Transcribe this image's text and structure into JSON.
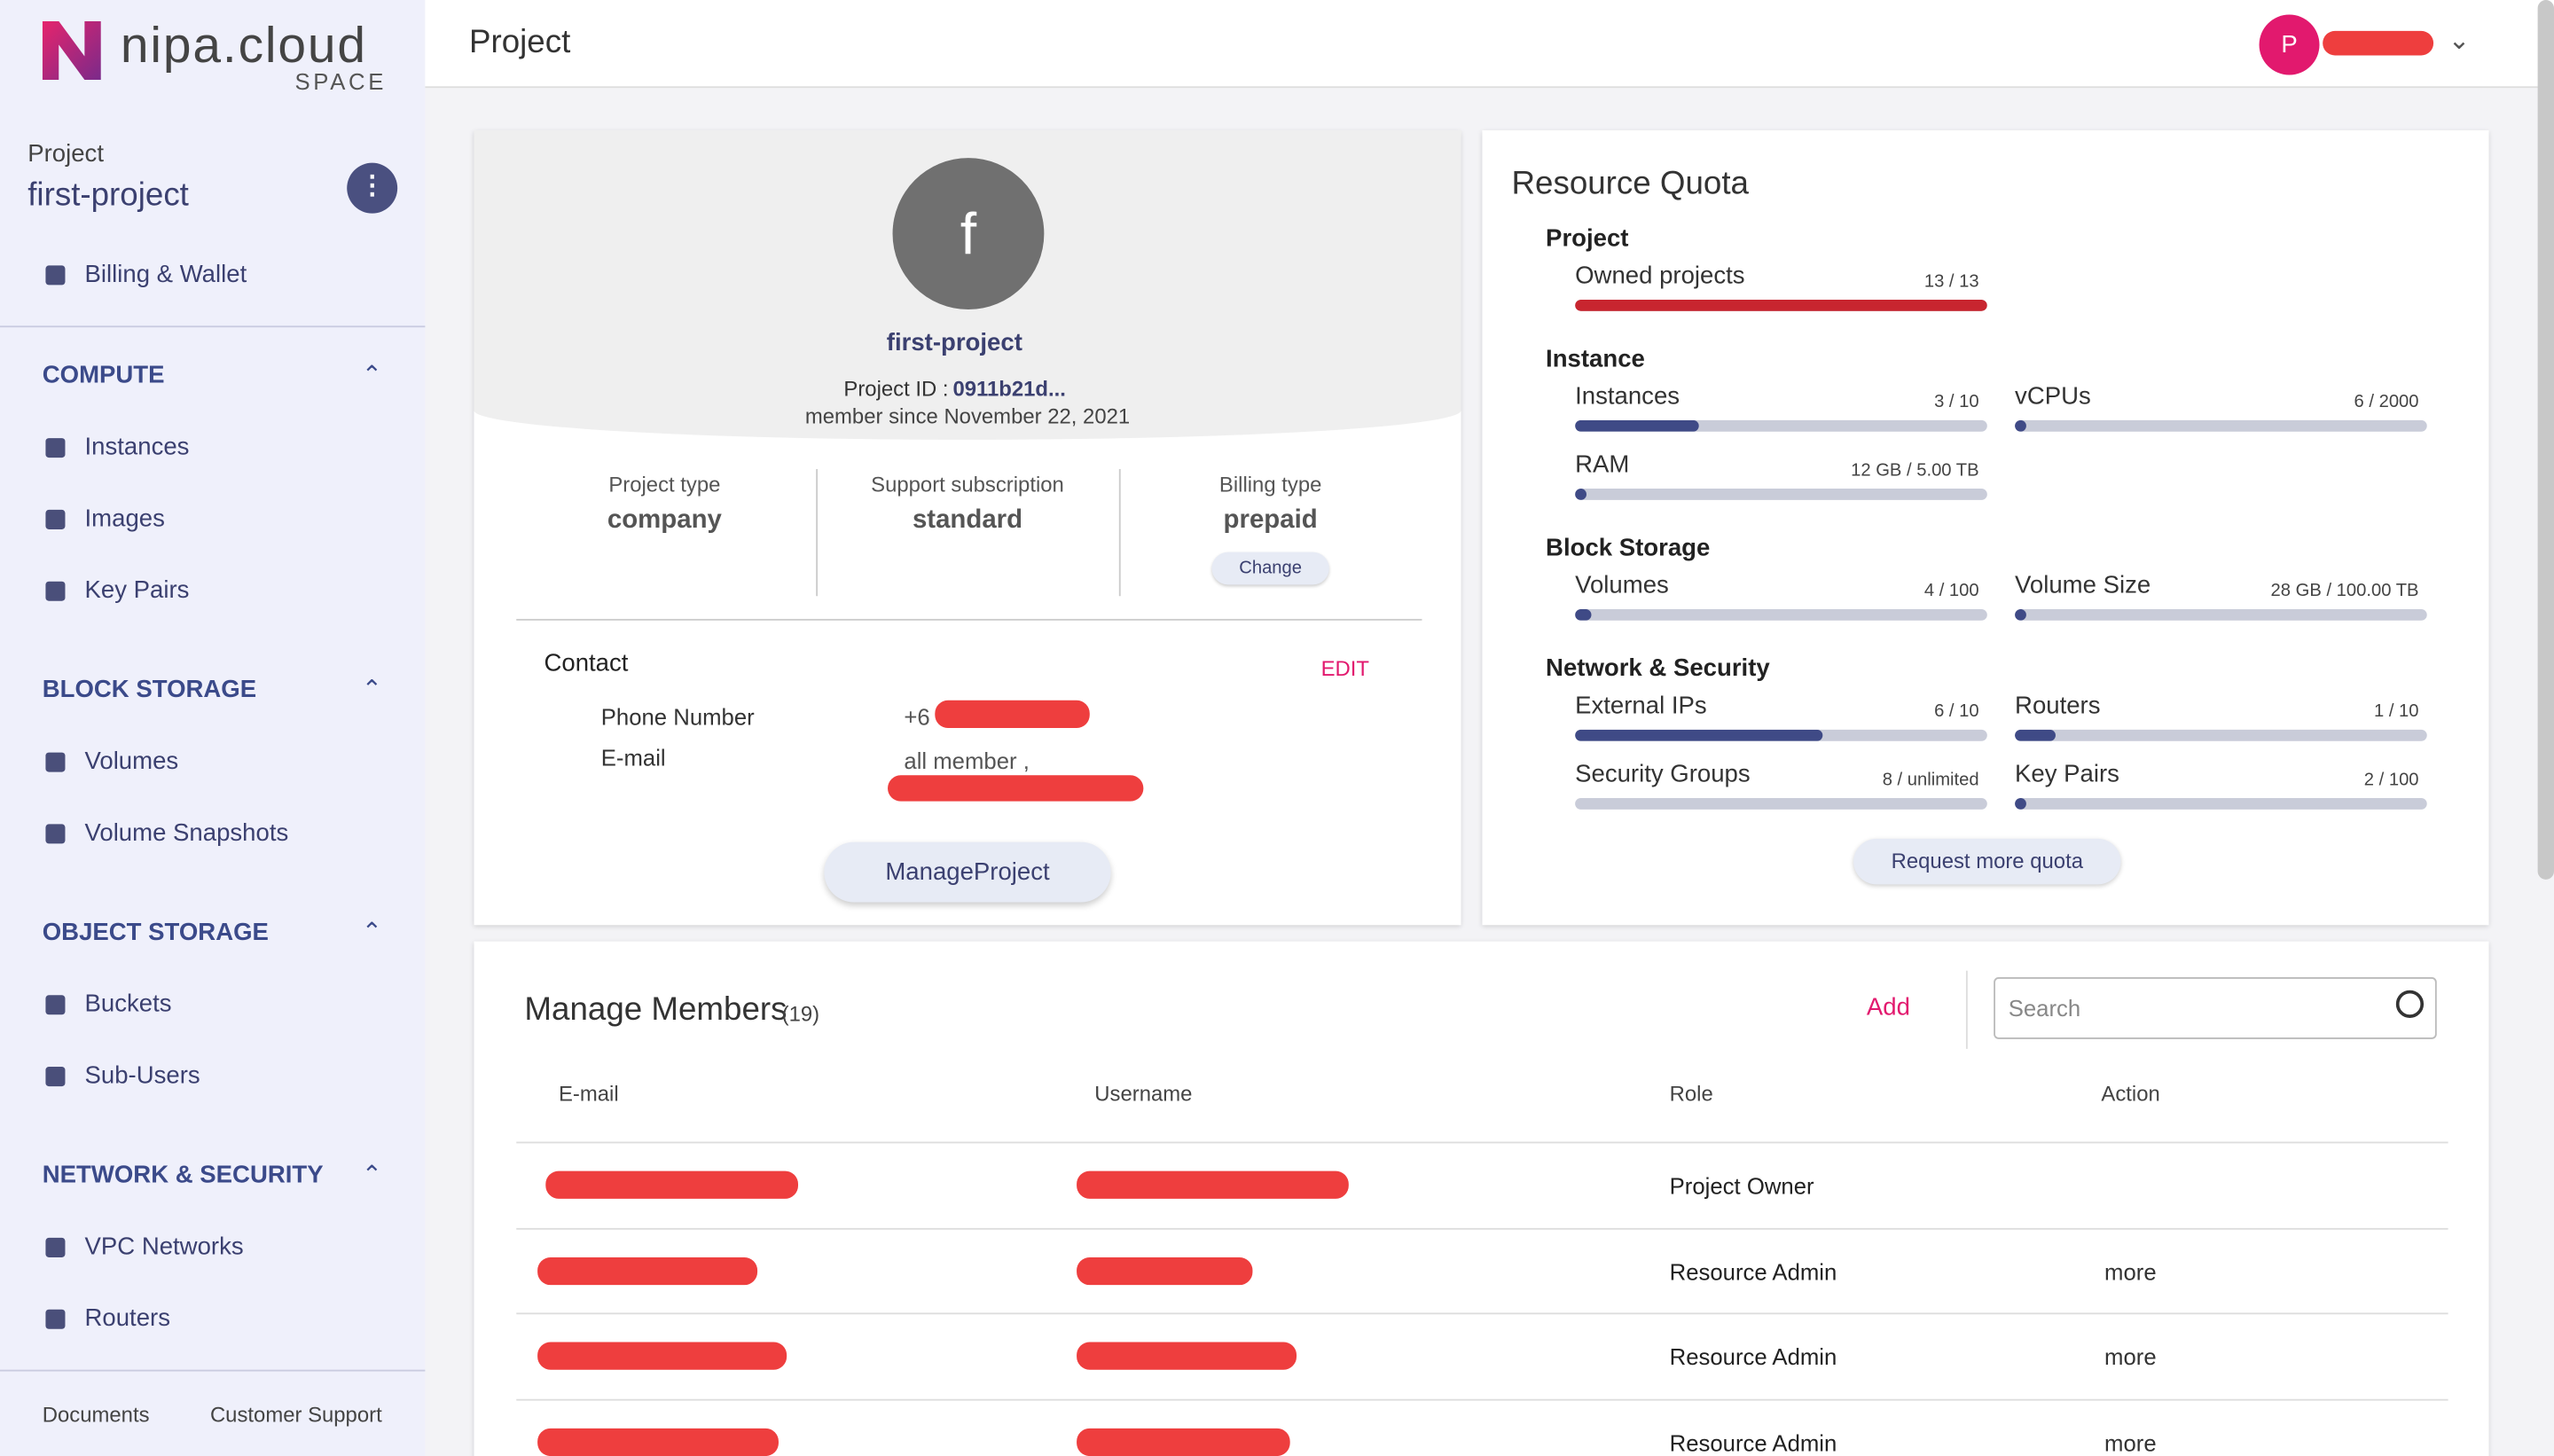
{
  "header": {
    "logo": "nipa.cloud",
    "logo_sub": "SPACE",
    "title": "Project",
    "avatar": "P"
  },
  "sidebar": {
    "project_label": "Project",
    "project_name": "first-project",
    "billing": "Billing & Wallet",
    "sections": [
      {
        "title": "COMPUTE",
        "items": [
          "Instances",
          "Images",
          "Key Pairs"
        ]
      },
      {
        "title": "BLOCK STORAGE",
        "items": [
          "Volumes",
          "Volume Snapshots"
        ]
      },
      {
        "title": "OBJECT STORAGE",
        "items": [
          "Buckets",
          "Sub-Users"
        ]
      },
      {
        "title": "NETWORK & SECURITY",
        "items": [
          "VPC Networks",
          "Routers"
        ]
      }
    ],
    "footer": [
      "Documents",
      "Customer Support"
    ]
  },
  "project": {
    "initial": "f",
    "name": "first-project",
    "id_label": "Project ID :",
    "id": "0911b21d...",
    "member_since": "member since November 22, 2021",
    "info": [
      {
        "label": "Project type",
        "value": "company"
      },
      {
        "label": "Support subscription",
        "value": "standard"
      },
      {
        "label": "Billing type",
        "value": "prepaid"
      }
    ],
    "change": "Change",
    "contact": {
      "title": "Contact",
      "edit": "EDIT",
      "phone_label": "Phone Number",
      "phone": "+6",
      "email_label": "E-mail",
      "email": "all member ,"
    },
    "manage": "ManageProject"
  },
  "quota": {
    "title": "Resource Quota",
    "groups": [
      {
        "title": "Project",
        "items": [
          {
            "label": "Owned projects",
            "usage": "13 / 13"
          }
        ]
      },
      {
        "title": "Instance",
        "items": [
          {
            "label": "Instances",
            "usage": "3 / 10"
          },
          {
            "label": "vCPUs",
            "usage": "6 / 2000"
          },
          {
            "label": "RAM",
            "usage": "12 GB / 5.00 TB"
          }
        ]
      },
      {
        "title": "Block Storage",
        "items": [
          {
            "label": "Volumes",
            "usage": "4 / 100"
          },
          {
            "label": "Volume Size",
            "usage": "28 GB / 100.00 TB"
          }
        ]
      },
      {
        "title": "Network & Security",
        "items": [
          {
            "label": "External IPs",
            "usage": "6 / 10"
          },
          {
            "label": "Routers",
            "usage": "1 / 10"
          },
          {
            "label": "Security Groups",
            "usage": "8 / unlimited"
          },
          {
            "label": "Key Pairs",
            "usage": "2 / 100"
          }
        ]
      }
    ],
    "request": "Request more quota"
  },
  "members": {
    "title": "Manage Members",
    "count": "(19)",
    "add": "Add",
    "search_placeholder": "Search",
    "columns": [
      "E-mail",
      "Username",
      "Role",
      "Action"
    ],
    "rows": [
      {
        "role": "Project Owner"
      },
      {
        "role": "Resource Admin",
        "action": "more"
      },
      {
        "role": "Resource Admin",
        "action": "more"
      },
      {
        "role": "Resource Admin",
        "action": "more"
      }
    ]
  }
}
